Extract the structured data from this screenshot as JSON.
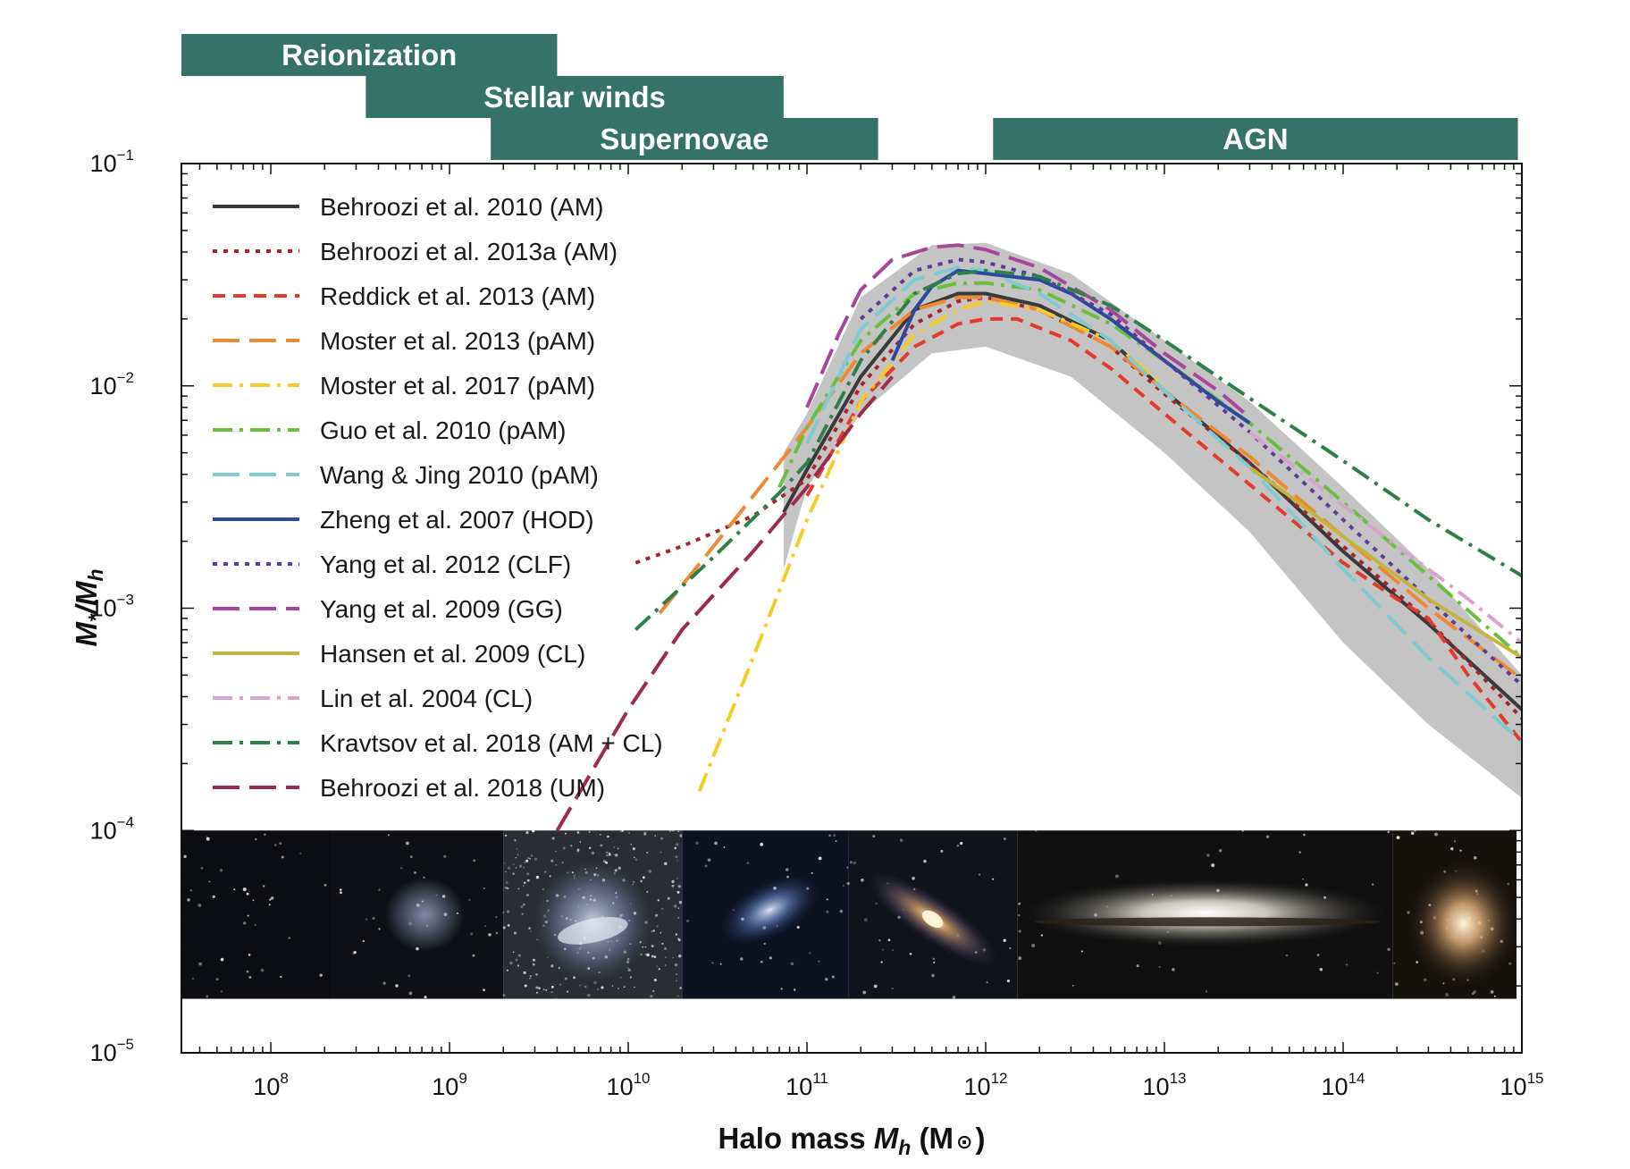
{
  "chart_data": {
    "type": "line",
    "xlabel": "Halo mass",
    "xlabel_symbol": "M",
    "xlabel_sub": "h",
    "xlabel_unit_open": "(M",
    "xlabel_unit_close": ")",
    "ylabel": "M",
    "ylabel_sub1": "*",
    "ylabel_mid": "/M",
    "ylabel_sub2": "h",
    "x_scale": "log",
    "y_scale": "log",
    "xlim": [
      31600000.0,
      1000000000000000.0
    ],
    "ylim": [
      1e-05,
      0.1
    ],
    "x_ticks": [
      {
        "value": 100000000.0,
        "base": "10",
        "exp": "8"
      },
      {
        "value": 1000000000.0,
        "base": "10",
        "exp": "9"
      },
      {
        "value": 10000000000.0,
        "base": "10",
        "exp": "10"
      },
      {
        "value": 100000000000.0,
        "base": "10",
        "exp": "11"
      },
      {
        "value": 1000000000000.0,
        "base": "10",
        "exp": "12"
      },
      {
        "value": 10000000000000.0,
        "base": "10",
        "exp": "13"
      },
      {
        "value": 100000000000000.0,
        "base": "10",
        "exp": "14"
      },
      {
        "value": 1000000000000000.0,
        "base": "10",
        "exp": "15"
      }
    ],
    "y_ticks": [
      {
        "value": 0.1,
        "base": "10",
        "exp": "−1"
      },
      {
        "value": 0.01,
        "base": "10",
        "exp": "−2"
      },
      {
        "value": 0.001,
        "base": "10",
        "exp": "−3"
      },
      {
        "value": 0.0001,
        "base": "10",
        "exp": "−4"
      },
      {
        "value": 1e-05,
        "base": "10",
        "exp": "−5"
      }
    ],
    "legend_position": "top-left",
    "feedback_bands": [
      {
        "label": "Reionization",
        "x_range": [
          31600000.0,
          4000000000.0
        ],
        "color": "#357268"
      },
      {
        "label": "Stellar winds",
        "x_range": [
          340000000.0,
          74000000000.0
        ],
        "color": "#357268"
      },
      {
        "label": "Supernovae",
        "x_range": [
          1700000000.0,
          250000000000.0
        ],
        "color": "#357268"
      },
      {
        "label": "AGN",
        "x_range": [
          1100000000000.0,
          950000000000000.0
        ],
        "color": "#357268"
      }
    ],
    "uncertainty_band": {
      "color": "#c4c4c4",
      "x": [
        74000000000.0,
        100000000000.0,
        200000000000.0,
        500000000000.0,
        1000000000000.0,
        3000000000000.0,
        10000000000000.0,
        30000000000000.0,
        100000000000000.0,
        300000000000000.0,
        1000000000000000.0
      ],
      "upper": [
        0.005,
        0.0075,
        0.025,
        0.043,
        0.044,
        0.032,
        0.016,
        0.0085,
        0.0035,
        0.0015,
        0.0005
      ],
      "lower": [
        0.0015,
        0.0035,
        0.0075,
        0.014,
        0.015,
        0.011,
        0.005,
        0.0022,
        0.0007,
        0.0003,
        0.00014
      ]
    },
    "series": [
      {
        "name": "Behroozi et al. 2010 (AM)",
        "color": "#3a3a3a",
        "dash": "solid",
        "x": [
          74000000000.0,
          100000000000.0,
          200000000000.0,
          400000000000.0,
          700000000000.0,
          1000000000000.0,
          2000000000000.0,
          5000000000000.0,
          10000000000000.0,
          30000000000000.0,
          100000000000000.0,
          300000000000000.0,
          1000000000000000.0
        ],
        "y": [
          0.0027,
          0.0042,
          0.011,
          0.022,
          0.026,
          0.026,
          0.023,
          0.016,
          0.0095,
          0.0045,
          0.0018,
          0.00085,
          0.00035
        ]
      },
      {
        "name": "Behroozi et al. 2013a (AM)",
        "color": "#a4262c",
        "dash": "dot",
        "x": [
          11000000000.0,
          20000000000.0,
          50000000000.0,
          100000000000.0,
          200000000000.0,
          400000000000.0,
          700000000000.0,
          1000000000000.0,
          2000000000000.0,
          5000000000000.0,
          10000000000000.0,
          30000000000000.0,
          100000000000000.0,
          300000000000000.0,
          1000000000000000.0
        ],
        "y": [
          0.0016,
          0.0019,
          0.0026,
          0.0038,
          0.01,
          0.019,
          0.024,
          0.025,
          0.022,
          0.015,
          0.0092,
          0.0045,
          0.0019,
          0.00088,
          0.00032
        ]
      },
      {
        "name": "Reddick et al. 2013 (AM)",
        "color": "#e23a2c",
        "dash": "dash",
        "x": [
          100000000000.0,
          200000000000.0,
          400000000000.0,
          700000000000.0,
          1000000000000.0,
          1500000000000.0,
          3000000000000.0,
          5000000000000.0,
          10000000000000.0,
          30000000000000.0,
          100000000000000.0,
          200000000000000.0,
          300000000000000.0,
          500000000000000.0,
          1000000000000000.0
        ],
        "y": [
          0.0032,
          0.0085,
          0.015,
          0.019,
          0.02,
          0.02,
          0.016,
          0.012,
          0.0075,
          0.0036,
          0.0016,
          0.0011,
          0.0009,
          0.0005,
          0.00025
        ]
      },
      {
        "name": "Moster et al. 2013 (pAM)",
        "color": "#ef8a32",
        "dash": "longdash",
        "x": [
          15000000000.0,
          30000000000.0,
          70000000000.0,
          100000000000.0,
          200000000000.0,
          400000000000.0,
          700000000000.0,
          1000000000000.0,
          2000000000000.0,
          5000000000000.0,
          10000000000000.0,
          30000000000000.0,
          100000000000000.0,
          300000000000000.0,
          1000000000000000.0
        ],
        "y": [
          0.00095,
          0.0019,
          0.0045,
          0.0065,
          0.014,
          0.022,
          0.025,
          0.025,
          0.022,
          0.015,
          0.0095,
          0.0048,
          0.0021,
          0.001,
          0.00048
        ]
      },
      {
        "name": "Moster et al. 2017 (pAM)",
        "color": "#f5cc2b",
        "dash": "dashdot",
        "x": [
          25000000000.0,
          50000000000.0,
          100000000000.0,
          200000000000.0,
          400000000000.0,
          700000000000.0,
          1000000000000.0,
          2000000000000.0,
          5000000000000.0,
          10000000000000.0
        ],
        "y": [
          0.00015,
          0.0006,
          0.0025,
          0.0085,
          0.017,
          0.022,
          0.024,
          0.022,
          0.016,
          0.01
        ]
      },
      {
        "name": "Guo et al. 2010 (pAM)",
        "color": "#6bbf3f",
        "dash": "dashdot",
        "x": [
          70000000000.0,
          100000000000.0,
          200000000000.0,
          400000000000.0,
          700000000000.0,
          1000000000000.0,
          2000000000000.0,
          5000000000000.0,
          10000000000000.0,
          30000000000000.0,
          100000000000000.0,
          300000000000000.0,
          1000000000000000.0
        ],
        "y": [
          0.0035,
          0.0065,
          0.016,
          0.026,
          0.029,
          0.029,
          0.027,
          0.019,
          0.013,
          0.0068,
          0.003,
          0.0014,
          0.0006
        ]
      },
      {
        "name": "Wang & Jing 2010 (pAM)",
        "color": "#7fcad3",
        "dash": "longdash",
        "x": [
          100000000000.0,
          200000000000.0,
          400000000000.0,
          700000000000.0,
          1000000000000.0,
          2000000000000.0,
          5000000000000.0,
          10000000000000.0,
          30000000000000.0,
          100000000000000.0,
          300000000000000.0,
          1000000000000000.0
        ],
        "y": [
          0.0055,
          0.018,
          0.03,
          0.034,
          0.033,
          0.026,
          0.016,
          0.0095,
          0.0043,
          0.0015,
          0.0006,
          0.00025
        ]
      },
      {
        "name": "Zheng et al. 2007 (HOD)",
        "color": "#2d4a9a",
        "dash": "solid",
        "x": [
          300000000000.0,
          400000000000.0,
          500000000000.0,
          700000000000.0,
          1000000000000.0,
          2000000000000.0,
          3000000000000.0,
          5000000000000.0,
          10000000000000.0,
          20000000000000.0,
          30000000000000.0
        ],
        "y": [
          0.013,
          0.022,
          0.028,
          0.033,
          0.032,
          0.03,
          0.026,
          0.02,
          0.013,
          0.0085,
          0.0068
        ]
      },
      {
        "name": "Yang et al. 2012 (CLF)",
        "color": "#5b3d97",
        "dash": "dot",
        "x": [
          200000000000.0,
          400000000000.0,
          700000000000.0,
          1000000000000.0,
          2000000000000.0,
          5000000000000.0,
          10000000000000.0,
          30000000000000.0,
          100000000000000.0,
          300000000000000.0,
          1000000000000000.0
        ],
        "y": [
          0.02,
          0.033,
          0.037,
          0.036,
          0.031,
          0.021,
          0.013,
          0.0062,
          0.0025,
          0.0011,
          0.00045
        ]
      },
      {
        "name": "Yang et al. 2009 (GG)",
        "color": "#a9459a",
        "dash": "longdash",
        "x": [
          100000000000.0,
          150000000000.0,
          200000000000.0,
          300000000000.0,
          500000000000.0,
          700000000000.0,
          1000000000000.0,
          2000000000000.0,
          5000000000000.0,
          10000000000000.0,
          20000000000000.0,
          30000000000000.0
        ],
        "y": [
          0.008,
          0.017,
          0.027,
          0.037,
          0.042,
          0.043,
          0.041,
          0.034,
          0.022,
          0.014,
          0.0095,
          0.0072
        ]
      },
      {
        "name": "Hansen et al. 2009 (CL)",
        "color": "#c3b440",
        "dash": "solid",
        "x": [
          30000000000000.0,
          50000000000000.0,
          100000000000000.0,
          200000000000000.0,
          300000000000000.0,
          500000000000000.0,
          1000000000000000.0
        ],
        "y": [
          0.0043,
          0.0032,
          0.0021,
          0.0014,
          0.0011,
          0.00085,
          0.0006
        ]
      },
      {
        "name": "Lin et al. 2004 (CL)",
        "color": "#d8a4cf",
        "dash": "dashdot",
        "x": [
          30000000000000.0,
          50000000000000.0,
          100000000000000.0,
          200000000000000.0,
          300000000000000.0,
          500000000000000.0,
          1000000000000000.0
        ],
        "y": [
          0.0062,
          0.0045,
          0.0029,
          0.0019,
          0.0015,
          0.0011,
          0.0007
        ]
      },
      {
        "name": "Kravtsov et al. 2018 (AM + CL)",
        "color": "#2f7f49",
        "dash": "dashdot",
        "x": [
          11000000000.0,
          30000000000.0,
          70000000000.0,
          100000000000.0,
          200000000000.0,
          400000000000.0,
          700000000000.0,
          1000000000000.0,
          2000000000000.0,
          5000000000000.0,
          10000000000000.0,
          30000000000000.0,
          100000000000000.0,
          300000000000000.0,
          1000000000000000.0
        ],
        "y": [
          0.0008,
          0.0017,
          0.0033,
          0.0045,
          0.013,
          0.026,
          0.032,
          0.033,
          0.031,
          0.023,
          0.016,
          0.0088,
          0.0046,
          0.0025,
          0.0014
        ]
      },
      {
        "name": "Behroozi et al. 2018 (UM)",
        "color": "#9e2a4c",
        "dash": "longdash",
        "x": [
          4000000000.0,
          10000000000.0,
          20000000000.0,
          50000000000.0,
          100000000000.0,
          150000000000.0,
          200000000000.0,
          300000000000.0
        ],
        "y": [
          0.0001,
          0.00035,
          0.0008,
          0.0018,
          0.0035,
          0.0055,
          0.0075,
          0.011
        ]
      }
    ],
    "galaxy_images": [
      {
        "name": "faint-dwarf",
        "x_range": [
          31600000.0,
          220000000.0
        ]
      },
      {
        "name": "dwarf-irregular-small",
        "x_range": [
          220000000.0,
          2000000000.0
        ]
      },
      {
        "name": "magellanic-irregular",
        "x_range": [
          2000000000.0,
          20000000000.0
        ]
      },
      {
        "name": "small-spiral",
        "x_range": [
          20000000000.0,
          170000000000.0
        ]
      },
      {
        "name": "andromeda-spiral",
        "x_range": [
          170000000000.0,
          1500000000000.0
        ]
      },
      {
        "name": "sombrero-lenticular",
        "x_range": [
          1500000000000.0,
          190000000000000.0
        ]
      },
      {
        "name": "giant-elliptical",
        "x_range": [
          190000000000000.0,
          1000000000000000.0
        ]
      }
    ],
    "galaxy_strip_y_range": [
      1.75e-05,
      0.0001
    ]
  }
}
